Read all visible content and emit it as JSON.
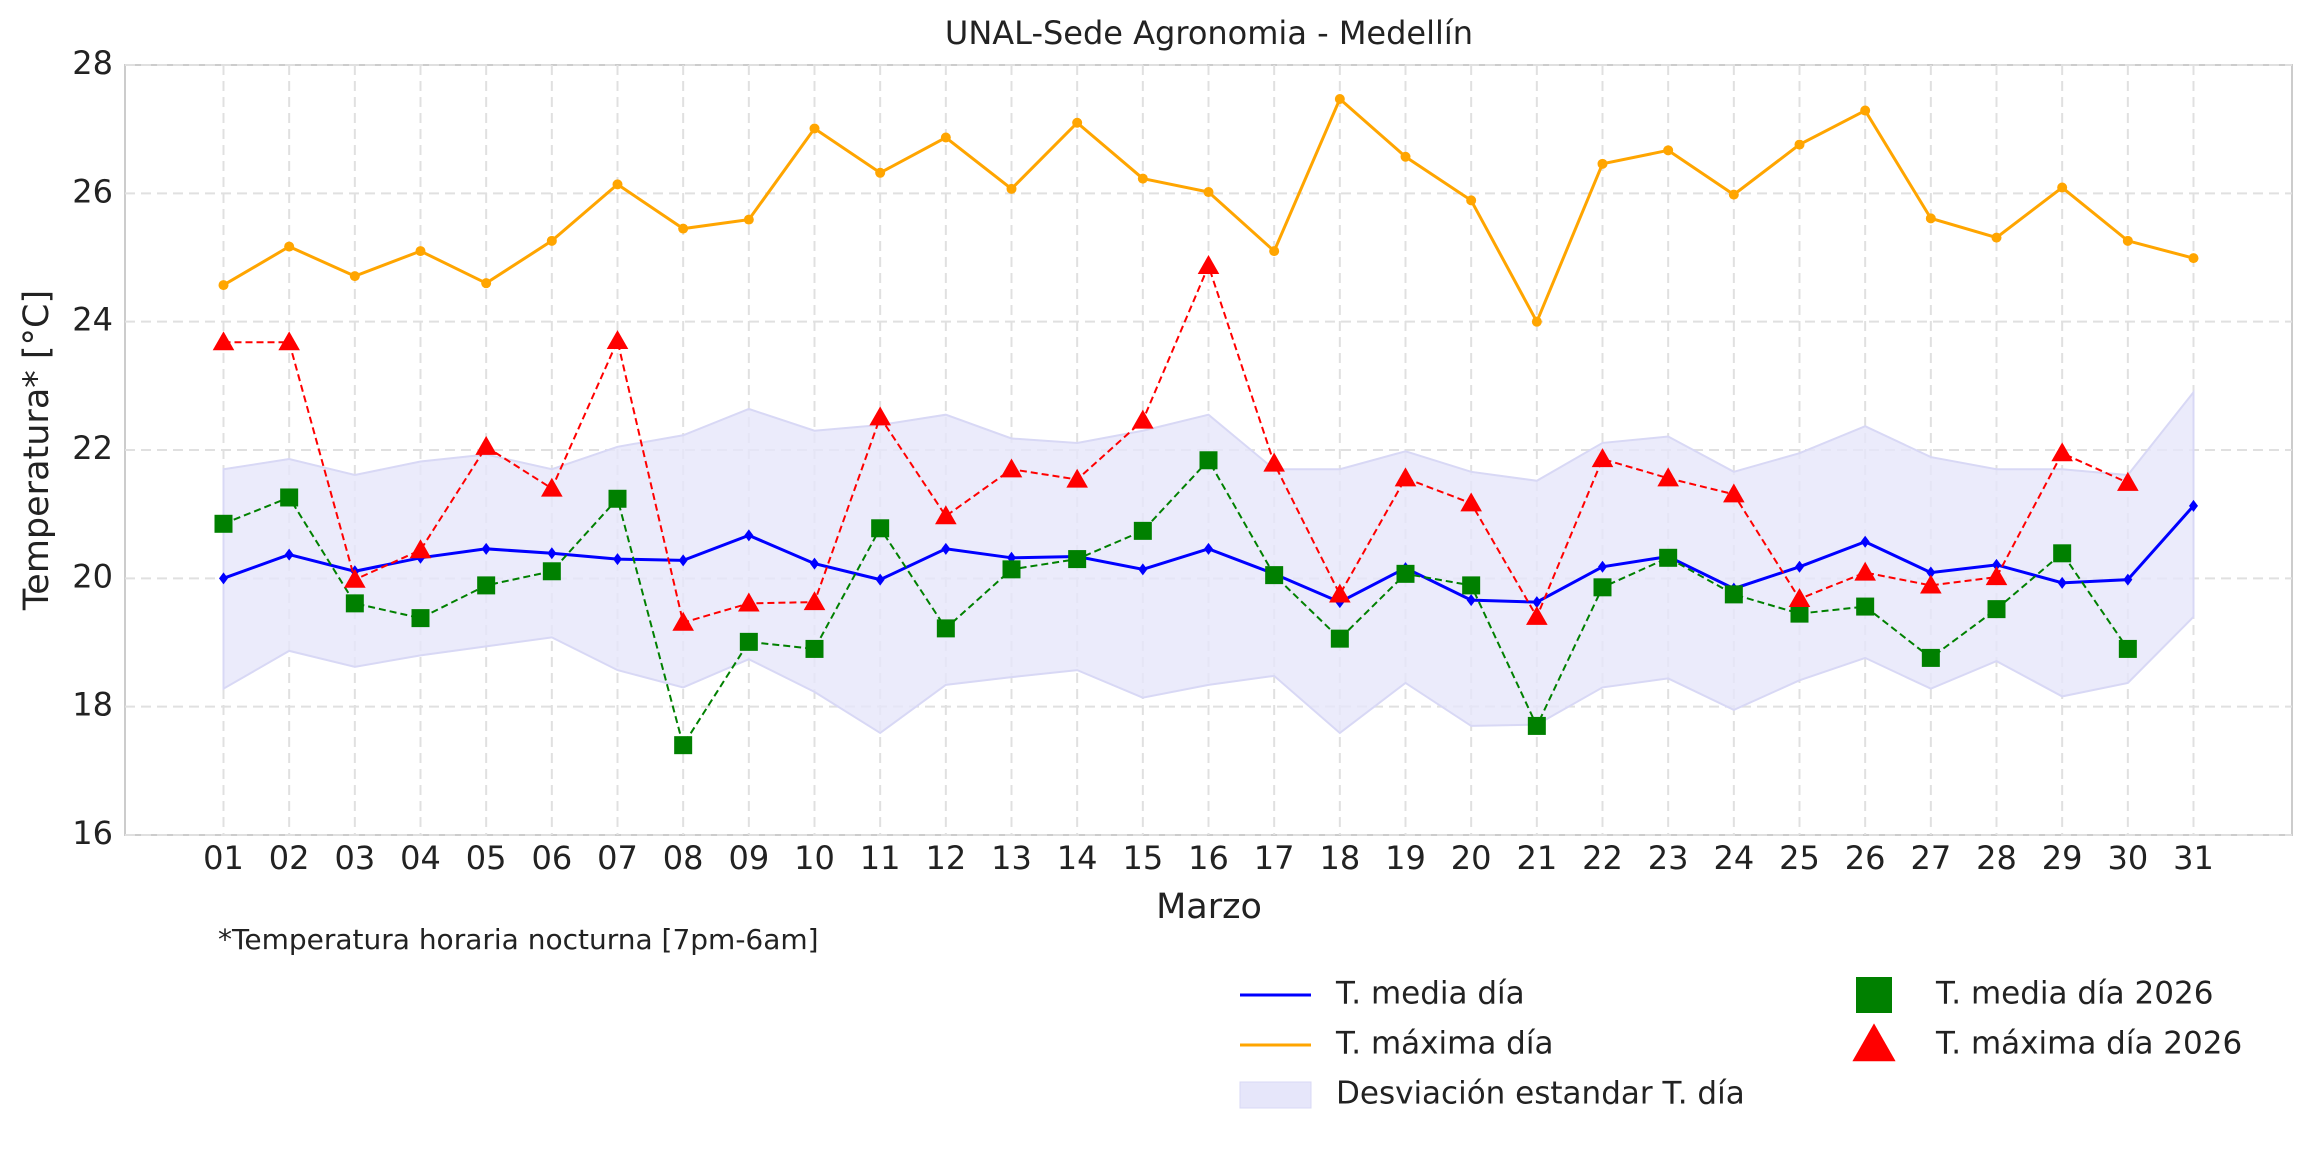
{
  "chart_data": {
    "type": "line",
    "title": "UNAL-Sede Agronomia - Medellín",
    "x_label": "Marzo",
    "y_label": "Temperatura* [°C]",
    "footnote": "*Temperatura horaria nocturna [7pm-6am]",
    "categories": [
      "01",
      "02",
      "03",
      "04",
      "05",
      "06",
      "07",
      "08",
      "09",
      "10",
      "11",
      "12",
      "13",
      "14",
      "15",
      "16",
      "17",
      "18",
      "19",
      "20",
      "21",
      "22",
      "23",
      "24",
      "25",
      "26",
      "27",
      "28",
      "29",
      "30",
      "31"
    ],
    "ylim": [
      16,
      28
    ],
    "yticks": [
      16,
      18,
      20,
      22,
      24,
      26,
      28
    ],
    "grid": true,
    "band": {
      "name": "Desviación estandar T. día",
      "color": "#e6e6fa",
      "upper": [
        21.7,
        21.86,
        21.61,
        21.82,
        21.93,
        21.7,
        22.05,
        22.23,
        22.64,
        22.3,
        22.39,
        22.55,
        22.18,
        22.11,
        22.3,
        22.55,
        21.7,
        21.7,
        21.98,
        21.66,
        21.52,
        22.11,
        22.21,
        21.66,
        21.95,
        22.37,
        21.89,
        21.7,
        21.7,
        21.61,
        22.9
      ],
      "lower": [
        18.28,
        18.87,
        18.62,
        18.8,
        18.94,
        19.08,
        18.57,
        18.3,
        18.74,
        18.23,
        17.59,
        18.34,
        18.46,
        18.57,
        18.14,
        18.34,
        18.48,
        17.59,
        18.37,
        17.7,
        17.72,
        18.3,
        18.44,
        17.95,
        18.41,
        18.76,
        18.28,
        18.71,
        18.16,
        18.37,
        19.4
      ]
    },
    "series": [
      {
        "name": "T. media día",
        "color": "#0000ff",
        "marker": "diamond",
        "line_style": "solid",
        "values": [
          20.0,
          20.37,
          20.11,
          20.32,
          20.46,
          20.39,
          20.3,
          20.28,
          20.67,
          20.23,
          19.98,
          20.46,
          20.32,
          20.34,
          20.14,
          20.46,
          20.07,
          19.63,
          20.16,
          19.66,
          19.63,
          20.18,
          20.34,
          19.84,
          20.18,
          20.57,
          20.09,
          20.21,
          19.93,
          19.98,
          21.13
        ]
      },
      {
        "name": "T. máxima día",
        "color": "#ffa500",
        "marker": "circle",
        "line_style": "solid",
        "values": [
          24.57,
          25.17,
          24.71,
          25.1,
          24.6,
          25.26,
          26.14,
          25.45,
          25.59,
          27.01,
          26.32,
          26.87,
          26.07,
          27.1,
          26.23,
          26.02,
          25.1,
          27.47,
          26.57,
          25.89,
          24.0,
          26.46,
          26.67,
          25.98,
          26.76,
          27.29,
          25.61,
          25.31,
          26.09,
          25.26,
          24.99
        ]
      },
      {
        "name": "T. media día 2026",
        "color": "#008000",
        "marker": "square",
        "line_style": "dashed",
        "values": [
          20.85,
          21.26,
          19.61,
          19.38,
          19.89,
          20.11,
          21.24,
          17.4,
          19.01,
          18.9,
          20.78,
          19.22,
          20.14,
          20.3,
          20.74,
          21.84,
          20.05,
          19.06,
          20.07,
          19.89,
          17.7,
          19.86,
          20.32,
          19.75,
          19.45,
          19.56,
          18.76,
          19.52,
          20.39,
          18.9,
          null
        ]
      },
      {
        "name": "T. máxima día 2026",
        "color": "#ff0000",
        "marker": "triangle",
        "line_style": "dashed",
        "values": [
          23.68,
          23.68,
          19.98,
          20.44,
          22.05,
          21.4,
          23.7,
          19.31,
          19.61,
          19.63,
          22.51,
          20.97,
          21.7,
          21.54,
          22.46,
          24.87,
          21.79,
          19.75,
          21.56,
          21.17,
          19.4,
          21.86,
          21.56,
          21.31,
          19.68,
          20.09,
          19.89,
          20.02,
          21.95,
          21.49,
          null
        ]
      }
    ]
  }
}
